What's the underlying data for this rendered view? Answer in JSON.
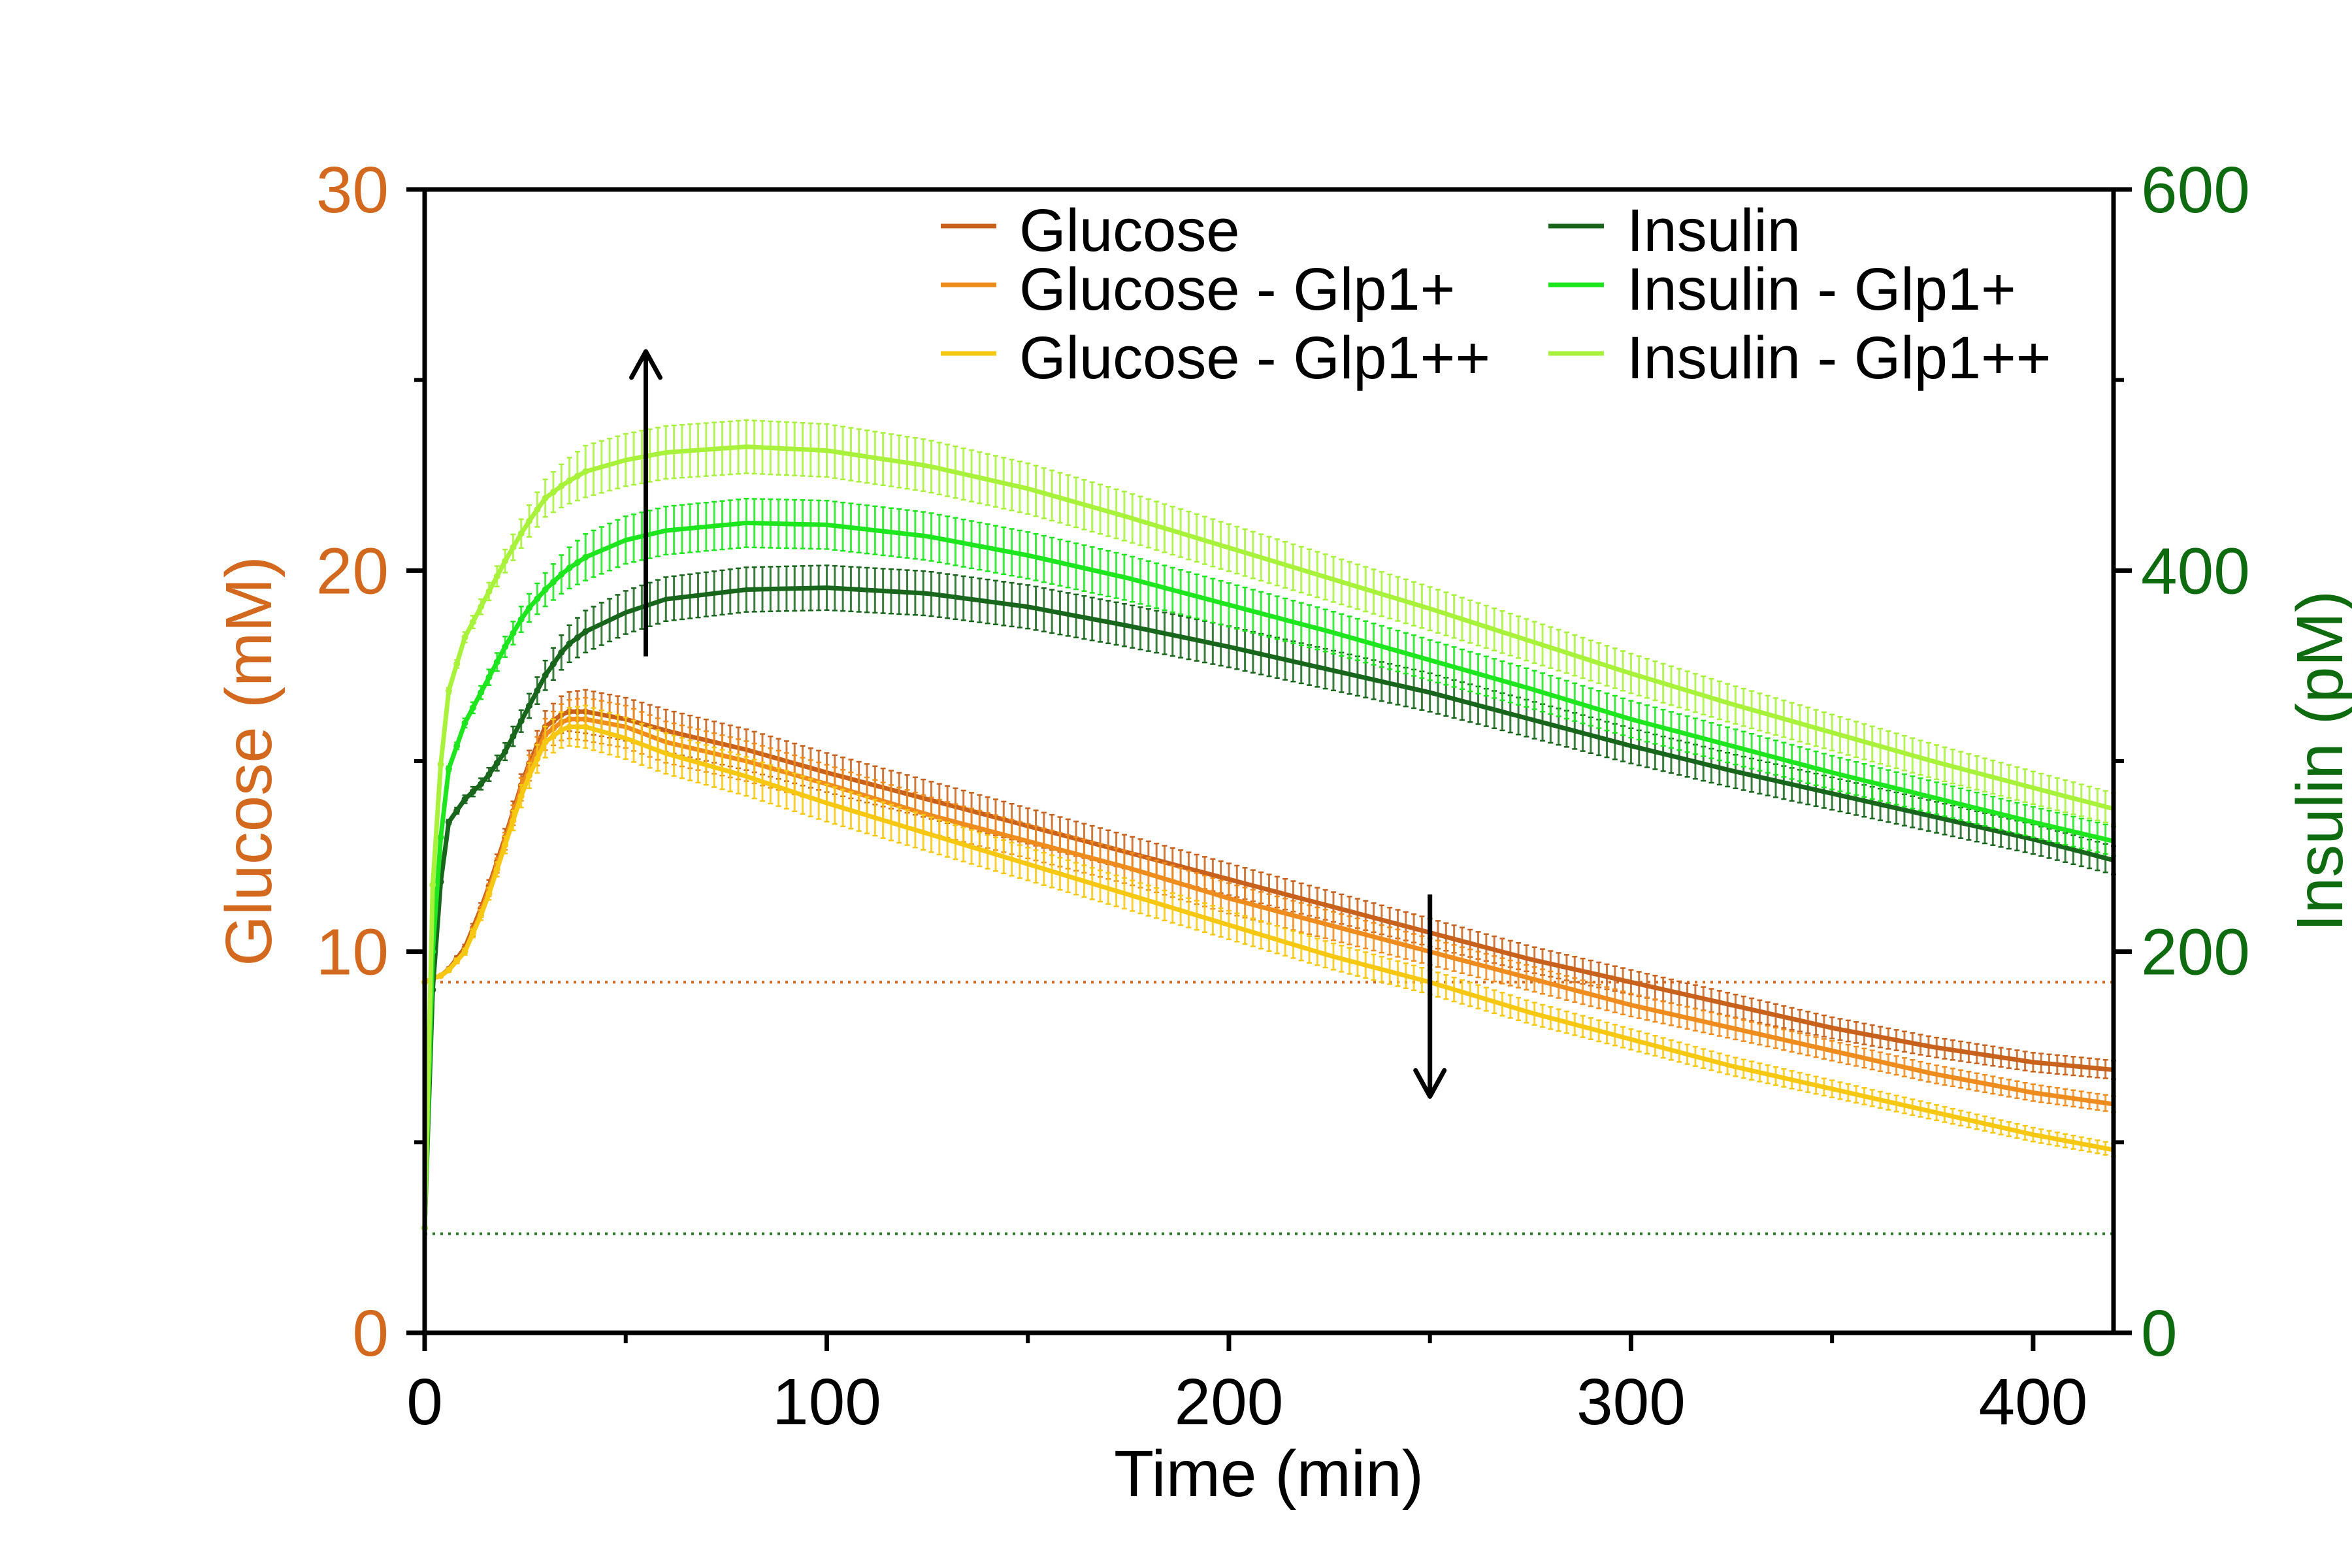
{
  "chart_data": {
    "type": "line",
    "title": "",
    "xlabel": "Time (min)",
    "ylabel_left": "Glucose (mM)",
    "ylabel_right": "Insulin (pM)",
    "xlim": [
      0,
      420
    ],
    "ylim_left": [
      0,
      30
    ],
    "ylim_right": [
      0,
      600
    ],
    "x_ticks": [
      0,
      100,
      200,
      300,
      400
    ],
    "x_tick_labels": [
      "0",
      "100",
      "200",
      "300",
      "400"
    ],
    "y_left_ticks": [
      0,
      10,
      20,
      30
    ],
    "y_left_tick_labels": [
      "0",
      "10",
      "20",
      "30"
    ],
    "y_right_ticks": [
      0,
      200,
      400,
      600
    ],
    "y_right_tick_labels": [
      "0",
      "200",
      "400",
      "600"
    ],
    "grid": false,
    "legend_position": "top-right",
    "colors": {
      "glucose_axis": "#d2691e",
      "insulin_axis": "#0f6b0f"
    },
    "reference_lines": [
      {
        "axis": "left",
        "y": 9.2,
        "color": "#d2691e",
        "style": "dotted"
      },
      {
        "axis": "right",
        "y": 52,
        "color": "#2e7d2e",
        "style": "dotted"
      }
    ],
    "arrows": [
      {
        "x": 55,
        "from_right": 355,
        "to_right": 515,
        "direction": "up"
      },
      {
        "x": 250,
        "from_left": 11.5,
        "to_left": 6.2,
        "direction": "down"
      }
    ],
    "series": [
      {
        "name": "Glucose",
        "axis": "left",
        "color": "#c8611b",
        "x": [
          0,
          2,
          5,
          10,
          15,
          20,
          25,
          30,
          35,
          40,
          50,
          60,
          80,
          100,
          125,
          150,
          175,
          200,
          225,
          250,
          275,
          300,
          325,
          350,
          375,
          400,
          420
        ],
        "y": [
          9.2,
          9.3,
          9.4,
          10.1,
          11.4,
          13.0,
          14.7,
          15.9,
          16.3,
          16.3,
          16.1,
          15.8,
          15.3,
          14.7,
          14.0,
          13.3,
          12.6,
          11.9,
          11.2,
          10.5,
          9.8,
          9.2,
          8.6,
          8.0,
          7.5,
          7.1,
          6.9
        ]
      },
      {
        "name": "Glucose - Glp1+",
        "axis": "left",
        "color": "#ef8c1e",
        "x": [
          0,
          2,
          5,
          10,
          15,
          20,
          25,
          30,
          35,
          40,
          50,
          60,
          80,
          100,
          125,
          150,
          175,
          200,
          225,
          250,
          275,
          300,
          325,
          350,
          375,
          400,
          420
        ],
        "y": [
          9.2,
          9.3,
          9.4,
          10.0,
          11.3,
          12.9,
          14.6,
          15.7,
          16.1,
          16.1,
          15.9,
          15.5,
          15.0,
          14.4,
          13.6,
          12.9,
          12.2,
          11.4,
          10.7,
          10.0,
          9.3,
          8.6,
          8.0,
          7.4,
          6.8,
          6.3,
          6.0
        ]
      },
      {
        "name": "Glucose - Glp1++",
        "axis": "left",
        "color": "#f7c812",
        "x": [
          0,
          2,
          5,
          10,
          15,
          20,
          25,
          30,
          35,
          40,
          50,
          60,
          80,
          100,
          125,
          150,
          175,
          200,
          225,
          250,
          275,
          300,
          325,
          350,
          375,
          400,
          420
        ],
        "y": [
          9.2,
          9.3,
          9.4,
          10.0,
          11.2,
          12.8,
          14.4,
          15.5,
          15.9,
          15.9,
          15.6,
          15.2,
          14.6,
          13.9,
          13.1,
          12.3,
          11.5,
          10.7,
          9.9,
          9.2,
          8.4,
          7.7,
          7.0,
          6.4,
          5.8,
          5.2,
          4.8
        ]
      },
      {
        "name": "Insulin",
        "axis": "right",
        "color": "#17661b",
        "x": [
          0,
          2,
          5,
          10,
          15,
          20,
          25,
          30,
          35,
          40,
          50,
          60,
          80,
          100,
          125,
          150,
          175,
          200,
          225,
          250,
          275,
          300,
          325,
          350,
          375,
          400,
          420
        ],
        "y": [
          55,
          180,
          265,
          280,
          290,
          305,
          325,
          345,
          360,
          368,
          378,
          385,
          390,
          391,
          388,
          381,
          371,
          360,
          348,
          336,
          322,
          308,
          295,
          283,
          271,
          259,
          248
        ]
      },
      {
        "name": "Insulin - Glp1+",
        "axis": "right",
        "color": "#1ee61e",
        "x": [
          0,
          2,
          5,
          10,
          15,
          20,
          25,
          30,
          35,
          40,
          50,
          60,
          80,
          100,
          125,
          150,
          175,
          200,
          225,
          250,
          275,
          300,
          325,
          350,
          375,
          400,
          420
        ],
        "y": [
          55,
          200,
          290,
          320,
          340,
          360,
          378,
          390,
          400,
          407,
          416,
          421,
          425,
          424,
          418,
          408,
          396,
          382,
          368,
          353,
          338,
          322,
          308,
          294,
          281,
          268,
          258
        ]
      },
      {
        "name": "Insulin - Glp1++",
        "axis": "right",
        "color": "#a8f23c",
        "x": [
          0,
          2,
          5,
          10,
          15,
          20,
          25,
          30,
          35,
          40,
          50,
          60,
          80,
          100,
          125,
          150,
          175,
          200,
          225,
          250,
          275,
          300,
          325,
          350,
          375,
          400,
          420
        ],
        "y": [
          55,
          235,
          330,
          365,
          385,
          405,
          423,
          438,
          446,
          452,
          458,
          462,
          465,
          463,
          455,
          443,
          428,
          412,
          396,
          380,
          363,
          346,
          330,
          315,
          300,
          286,
          275
        ]
      }
    ]
  }
}
